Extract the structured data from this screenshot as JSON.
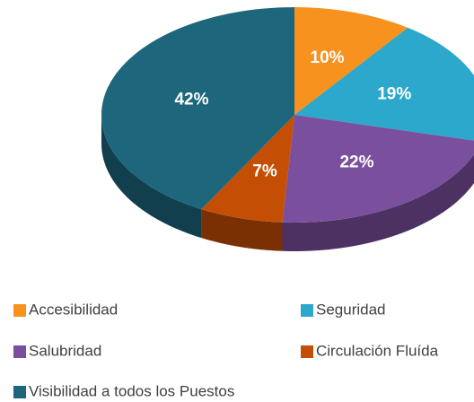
{
  "chart_data": {
    "type": "pie",
    "categories": [
      "Accesibilidad",
      "Seguridad",
      "Salubridad",
      "Circulación Fluída",
      "Visibilidad a todos los Puestos"
    ],
    "values": [
      10,
      19,
      22,
      7,
      42
    ],
    "value_labels": [
      "10%",
      "19%",
      "22%",
      "7%",
      "42%"
    ],
    "colors": [
      "#f7921e",
      "#2ba8cb",
      "#7a4f9e",
      "#c44e04",
      "#1d667c"
    ]
  }
}
